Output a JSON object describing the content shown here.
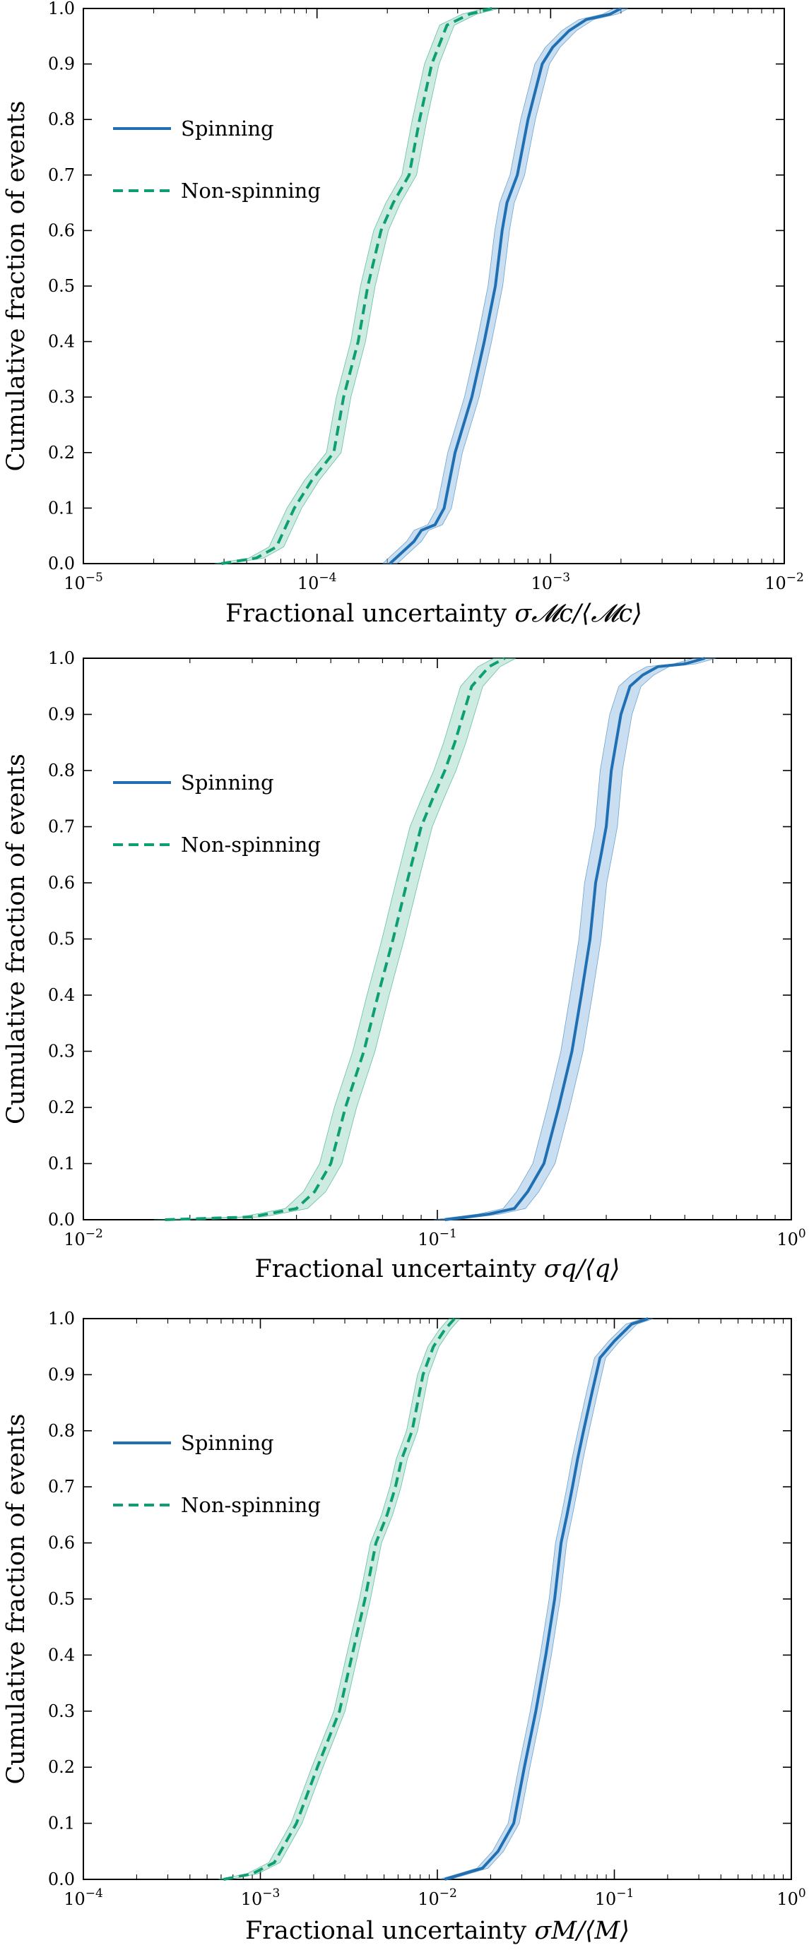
{
  "colors": {
    "spinning": "#1f6fb2",
    "spinning_band": "#9cc4e6",
    "nonspinning": "#0e9e73",
    "nonspinning_band": "#a6dbc8"
  },
  "chart_data": [
    {
      "type": "line",
      "xscale": "log",
      "xlim": [
        1e-05,
        0.01
      ],
      "ylim": [
        0,
        1
      ],
      "ylabel": "Cumulative fraction of events",
      "xlabel": {
        "text": "Fractional uncertainty ",
        "math": "σ𝓜c/⟨𝓜c⟩"
      },
      "yticks": [
        "0.0",
        "0.1",
        "0.2",
        "0.3",
        "0.4",
        "0.5",
        "0.6",
        "0.7",
        "0.8",
        "0.9",
        "1.0"
      ],
      "xticks": [
        {
          "base": "10",
          "exp": "−5"
        },
        {
          "base": "10",
          "exp": "−4"
        },
        {
          "base": "10",
          "exp": "−3"
        },
        {
          "base": "10",
          "exp": "−2"
        }
      ],
      "legend": {
        "position": "upper-left",
        "entries": [
          "Spinning",
          "Non-spinning"
        ]
      },
      "series": [
        {
          "name": "Spinning",
          "style": "solid",
          "x": [
            0.000205,
            0.00026,
            0.00028,
            0.00032,
            0.00035,
            0.00039,
            0.00046,
            0.00052,
            0.00058,
            0.00062,
            0.00065,
            0.00072,
            0.0008,
            0.00092,
            0.00102,
            0.0012,
            0.00142,
            0.0018,
            0.002
          ],
          "y": [
            0.0,
            0.04,
            0.06,
            0.07,
            0.1,
            0.2,
            0.3,
            0.4,
            0.5,
            0.6,
            0.65,
            0.7,
            0.8,
            0.9,
            0.93,
            0.96,
            0.98,
            0.99,
            1.0
          ]
        },
        {
          "name": "Non-spinning",
          "style": "dashed",
          "x": [
            3.9e-05,
            5.5e-05,
            6.7e-05,
            8e-05,
            9.5e-05,
            0.000118,
            0.00013,
            0.00015,
            0.000165,
            0.000188,
            0.000212,
            0.000248,
            0.000275,
            0.00031,
            0.00036,
            0.00045,
            0.00056
          ],
          "y": [
            0.0,
            0.01,
            0.03,
            0.1,
            0.15,
            0.2,
            0.3,
            0.4,
            0.5,
            0.6,
            0.65,
            0.7,
            0.8,
            0.9,
            0.97,
            0.99,
            1.0
          ]
        }
      ]
    },
    {
      "type": "line",
      "xscale": "log",
      "xlim": [
        0.01,
        1
      ],
      "ylim": [
        0,
        1
      ],
      "ylabel": "Cumulative fraction of events",
      "xlabel": {
        "text": "Fractional uncertainty ",
        "math": "σq/⟨q⟩"
      },
      "yticks": [
        "0.0",
        "0.1",
        "0.2",
        "0.3",
        "0.4",
        "0.5",
        "0.6",
        "0.7",
        "0.8",
        "0.9",
        "1.0"
      ],
      "xticks": [
        {
          "base": "10",
          "exp": "−2"
        },
        {
          "base": "10",
          "exp": "−1"
        },
        {
          "base": "10",
          "exp": "0"
        }
      ],
      "legend": {
        "position": "upper-left",
        "entries": [
          "Spinning",
          "Non-spinning"
        ]
      },
      "series": [
        {
          "name": "Spinning",
          "style": "solid",
          "x": [
            0.105,
            0.14,
            0.165,
            0.18,
            0.2,
            0.22,
            0.24,
            0.255,
            0.27,
            0.28,
            0.29,
            0.3,
            0.31,
            0.33,
            0.35,
            0.38,
            0.42,
            0.5,
            0.57
          ],
          "y": [
            0.0,
            0.01,
            0.02,
            0.05,
            0.1,
            0.2,
            0.3,
            0.4,
            0.5,
            0.6,
            0.65,
            0.7,
            0.8,
            0.9,
            0.95,
            0.97,
            0.985,
            0.99,
            1.0
          ]
        },
        {
          "name": "Non-spinning",
          "style": "dashed",
          "x": [
            0.017,
            0.03,
            0.04,
            0.045,
            0.05,
            0.055,
            0.062,
            0.068,
            0.075,
            0.082,
            0.09,
            0.097,
            0.105,
            0.112,
            0.125,
            0.14,
            0.155
          ],
          "y": [
            0.0,
            0.005,
            0.02,
            0.05,
            0.1,
            0.2,
            0.3,
            0.4,
            0.5,
            0.6,
            0.7,
            0.75,
            0.8,
            0.85,
            0.95,
            0.985,
            1.0
          ]
        }
      ]
    },
    {
      "type": "line",
      "xscale": "log",
      "xlim": [
        0.0001,
        1
      ],
      "ylim": [
        0,
        1
      ],
      "ylabel": "Cumulative fraction of events",
      "xlabel": {
        "text": "Fractional uncertainty ",
        "math": "σM/⟨M⟩"
      },
      "yticks": [
        "0.0",
        "0.1",
        "0.2",
        "0.3",
        "0.4",
        "0.5",
        "0.6",
        "0.7",
        "0.8",
        "0.9",
        "1.0"
      ],
      "xticks": [
        {
          "base": "10",
          "exp": "−4"
        },
        {
          "base": "10",
          "exp": "−3"
        },
        {
          "base": "10",
          "exp": "−2"
        },
        {
          "base": "10",
          "exp": "−1"
        },
        {
          "base": "10",
          "exp": "0"
        }
      ],
      "legend": {
        "position": "upper-left",
        "entries": [
          "Spinning",
          "Non-spinning"
        ]
      },
      "series": [
        {
          "name": "Spinning",
          "style": "solid",
          "x": [
            0.011,
            0.018,
            0.022,
            0.027,
            0.031,
            0.036,
            0.041,
            0.046,
            0.05,
            0.054,
            0.058,
            0.062,
            0.067,
            0.075,
            0.083,
            0.1,
            0.125,
            0.155
          ],
          "y": [
            0.0,
            0.02,
            0.05,
            0.1,
            0.2,
            0.3,
            0.4,
            0.5,
            0.6,
            0.65,
            0.7,
            0.75,
            0.8,
            0.87,
            0.93,
            0.96,
            0.99,
            1.0
          ]
        },
        {
          "name": "Non-spinning",
          "style": "dashed",
          "x": [
            0.00062,
            0.0009,
            0.0012,
            0.0016,
            0.0021,
            0.0028,
            0.0033,
            0.0039,
            0.0045,
            0.0052,
            0.0058,
            0.0063,
            0.0072,
            0.0083,
            0.0095,
            0.011,
            0.0125
          ],
          "y": [
            0.0,
            0.01,
            0.03,
            0.1,
            0.2,
            0.3,
            0.4,
            0.5,
            0.6,
            0.65,
            0.7,
            0.75,
            0.8,
            0.9,
            0.95,
            0.98,
            1.0
          ]
        }
      ]
    }
  ]
}
